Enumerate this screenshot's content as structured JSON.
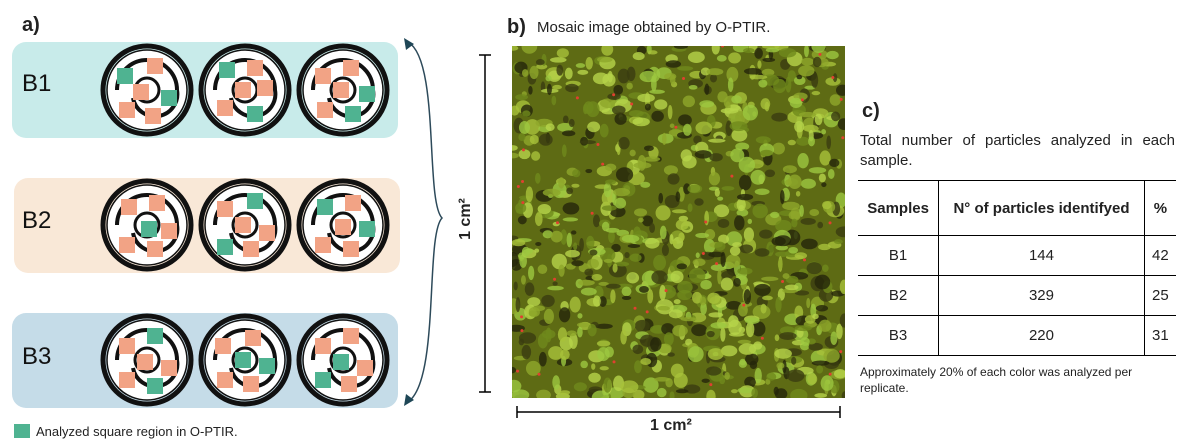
{
  "panel_a": {
    "label": "a)",
    "samples": [
      "B1",
      "B2",
      "B3"
    ],
    "legend": "Analyzed square region in O-PTIR."
  },
  "panel_b": {
    "label": "b)",
    "title": "Mosaic image obtained by O-PTIR.",
    "height_label": "1 cm²",
    "width_label": "1 cm²"
  },
  "panel_c": {
    "label": "c)",
    "caption": "Total number of particles analyzed in each sample.",
    "table": {
      "header": [
        "Samples",
        "N° of particles identifyed",
        "%"
      ],
      "rows": [
        [
          "B1",
          144,
          42
        ],
        [
          "B2",
          329,
          25
        ],
        [
          "B3",
          220,
          31
        ]
      ]
    },
    "footnote": "Approximately 20% of each color was analyzed per replicate."
  }
}
